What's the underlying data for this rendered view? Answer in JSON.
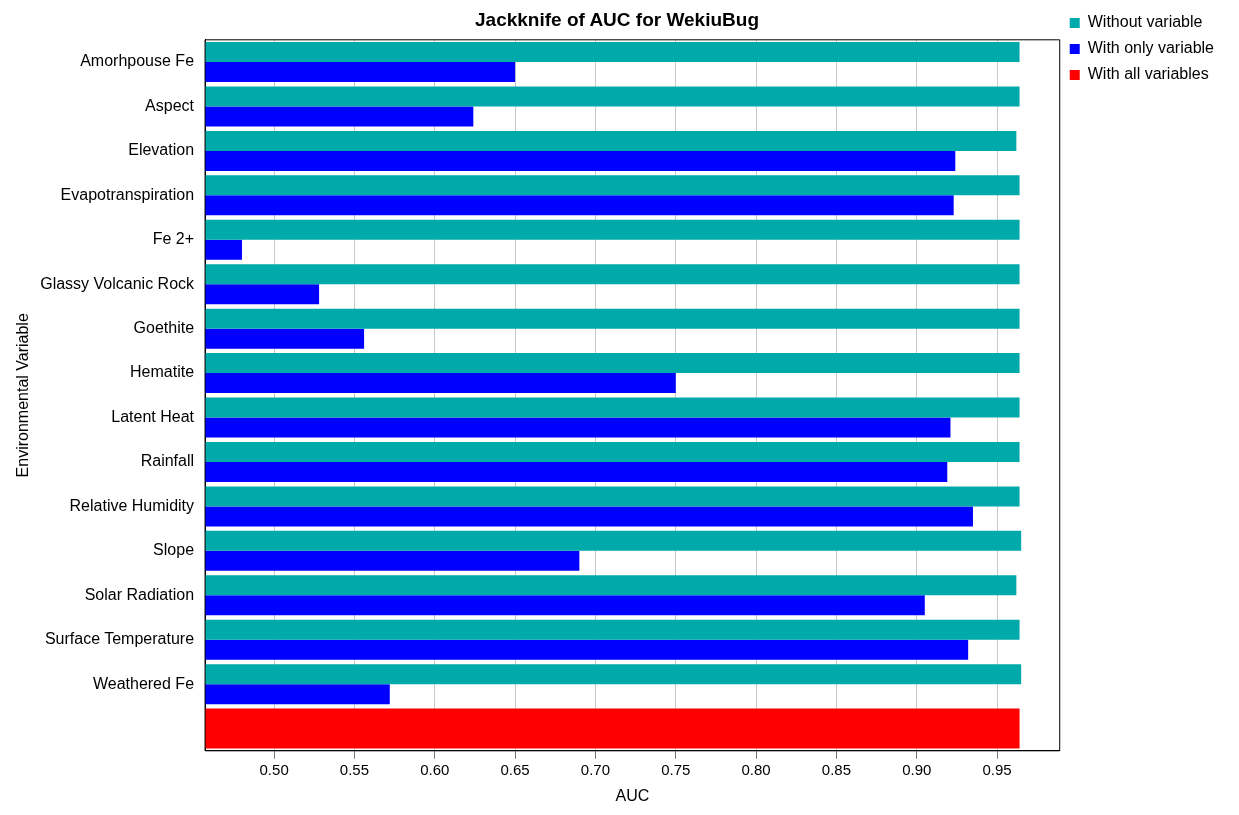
{
  "chart_data": {
    "type": "bar",
    "orientation": "horizontal",
    "title": "Jackknife of AUC for WekiuBug",
    "xlabel": "AUC",
    "ylabel": "Environmental Variable",
    "categories": [
      "Amorhpouse Fe",
      "Aspect",
      "Elevation",
      "Evapotranspiration",
      "Fe 2+",
      "Glassy Volcanic Rock",
      "Goethite",
      "Hematite",
      "Latent Heat",
      "Rainfall",
      "Relative Humidity",
      "Slope",
      "Solar Radiation",
      "Surface Temperature",
      "Weathered Fe",
      null
    ],
    "series": [
      {
        "name": "Without variable",
        "color": "#00aaaa",
        "values": [
          0.964,
          0.964,
          0.962,
          0.964,
          0.964,
          0.964,
          0.964,
          0.964,
          0.964,
          0.964,
          0.964,
          0.965,
          0.962,
          0.964,
          0.965,
          null
        ]
      },
      {
        "name": "With only variable",
        "color": "#0000ff",
        "values": [
          0.65,
          0.624,
          0.924,
          0.923,
          0.48,
          0.528,
          0.556,
          0.75,
          0.921,
          0.919,
          0.935,
          0.69,
          0.905,
          0.932,
          0.572,
          null
        ]
      },
      {
        "name": "With all variables",
        "color": "#ff0000",
        "values": [
          null,
          null,
          null,
          null,
          null,
          null,
          null,
          null,
          null,
          null,
          null,
          null,
          null,
          null,
          null,
          0.964
        ]
      }
    ],
    "xlim": [
      0.457,
      0.989
    ],
    "xticks": [
      {
        "value": 0.5,
        "label": "0.50"
      },
      {
        "value": 0.55,
        "label": "0.55"
      },
      {
        "value": 0.6,
        "label": "0.60"
      },
      {
        "value": 0.65,
        "label": "0.65"
      },
      {
        "value": 0.7,
        "label": "0.70"
      },
      {
        "value": 0.75,
        "label": "0.75"
      },
      {
        "value": 0.8,
        "label": "0.80"
      },
      {
        "value": 0.85,
        "label": "0.85"
      },
      {
        "value": 0.9,
        "label": "0.90"
      },
      {
        "value": 0.95,
        "label": "0.95"
      }
    ],
    "grid": "x",
    "legend": "top right"
  }
}
